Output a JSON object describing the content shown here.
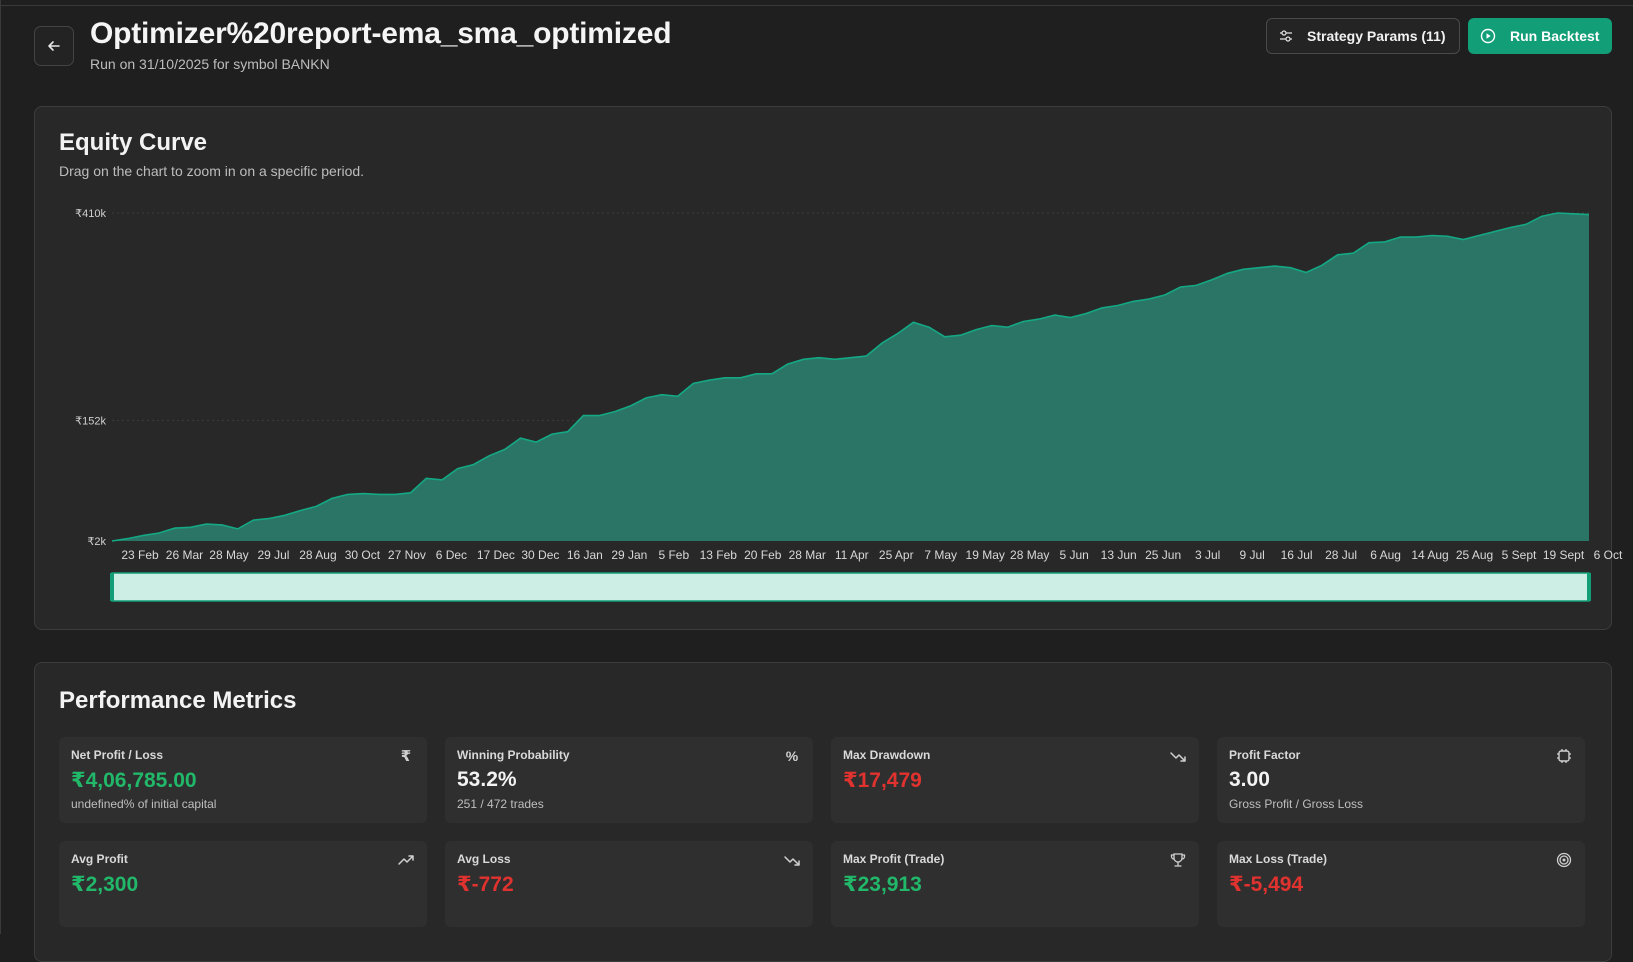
{
  "header": {
    "title": "Optimizer%20report-ema_sma_optimized",
    "subtitle": "Run on 31/10/2025 for symbol BANKN",
    "back_icon": "arrow-left-icon",
    "strategy_params_label": "Strategy Params (11)",
    "run_backtest_label": "Run Backtest"
  },
  "equity": {
    "title": "Equity Curve",
    "description": "Drag on the chart to zoom in on a specific period."
  },
  "colors": {
    "accent": "#129e77",
    "area_fill": "#2a7565",
    "area_stroke": "#14a884",
    "positive": "#22b86a",
    "negative": "#e0322f"
  },
  "chart_data": {
    "type": "area",
    "title": "",
    "xlabel": "",
    "ylabel": "",
    "y_tick_labels": [
      "₹410k",
      "₹152k",
      "₹2k"
    ],
    "y_ticks": [
      410000,
      152000,
      2000
    ],
    "ylim": [
      2000,
      410000
    ],
    "grid": true,
    "x_tick_labels": [
      "23 Feb",
      "26 Mar",
      "28 May",
      "29 Jul",
      "28 Aug",
      "30 Oct",
      "27 Nov",
      "6 Dec",
      "17 Dec",
      "30 Dec",
      "16 Jan",
      "29 Jan",
      "5 Feb",
      "13 Feb",
      "20 Feb",
      "28 Mar",
      "11 Apr",
      "25 Apr",
      "7 May",
      "19 May",
      "28 May",
      "5 Jun",
      "13 Jun",
      "25 Jun",
      "3 Jul",
      "9 Jul",
      "16 Jul",
      "28 Jul",
      "6 Aug",
      "14 Aug",
      "25 Aug",
      "5 Sept",
      "19 Sept",
      "6 Oct"
    ],
    "series": [
      {
        "values": [
          2000,
          5000,
          9000,
          12000,
          18000,
          19000,
          23000,
          22000,
          17000,
          28000,
          30000,
          34000,
          40000,
          45000,
          55000,
          60000,
          61000,
          60000,
          60000,
          62000,
          80000,
          78000,
          92000,
          97000,
          108000,
          116000,
          130000,
          125000,
          135000,
          138000,
          158000,
          158000,
          163000,
          170000,
          180000,
          184000,
          182000,
          198000,
          202000,
          205000,
          205000,
          210000,
          210000,
          222000,
          228000,
          230000,
          228000,
          230000,
          232000,
          248000,
          260000,
          274000,
          268000,
          256000,
          258000,
          265000,
          270000,
          268000,
          275000,
          278000,
          283000,
          280000,
          285000,
          292000,
          295000,
          300000,
          303000,
          308000,
          318000,
          320000,
          327000,
          335000,
          340000,
          342000,
          344000,
          342000,
          336000,
          345000,
          358000,
          360000,
          373000,
          374000,
          380000,
          380000,
          382000,
          381000,
          377000,
          382000,
          387000,
          392000,
          396000,
          406000,
          410000,
          409000,
          408000
        ]
      }
    ]
  },
  "metrics": {
    "title": "Performance Metrics",
    "items": [
      {
        "label": "Net Profit / Loss",
        "value": "₹4,06,785.00",
        "sub": "undefined% of initial capital",
        "icon": "rupee-icon",
        "tone": "green"
      },
      {
        "label": "Winning Probability",
        "value": "53.2%",
        "sub": "251 / 472 trades",
        "icon": "percent-icon",
        "tone": "white"
      },
      {
        "label": "Max Drawdown",
        "value": "₹17,479",
        "sub": "",
        "icon": "trending-down-icon",
        "tone": "red"
      },
      {
        "label": "Profit Factor",
        "value": "3.00",
        "sub": "Gross Profit / Gross Loss",
        "icon": "cpu-icon",
        "tone": "white"
      },
      {
        "label": "Avg Profit",
        "value": "₹2,300",
        "sub": "",
        "icon": "trending-up-icon",
        "tone": "green"
      },
      {
        "label": "Avg Loss",
        "value": "₹-772",
        "sub": "",
        "icon": "trending-down-icon",
        "tone": "red"
      },
      {
        "label": "Max Profit (Trade)",
        "value": "₹23,913",
        "sub": "",
        "icon": "trophy-icon",
        "tone": "green"
      },
      {
        "label": "Max Loss (Trade)",
        "value": "₹-5,494",
        "sub": "",
        "icon": "target-icon",
        "tone": "red"
      }
    ]
  }
}
